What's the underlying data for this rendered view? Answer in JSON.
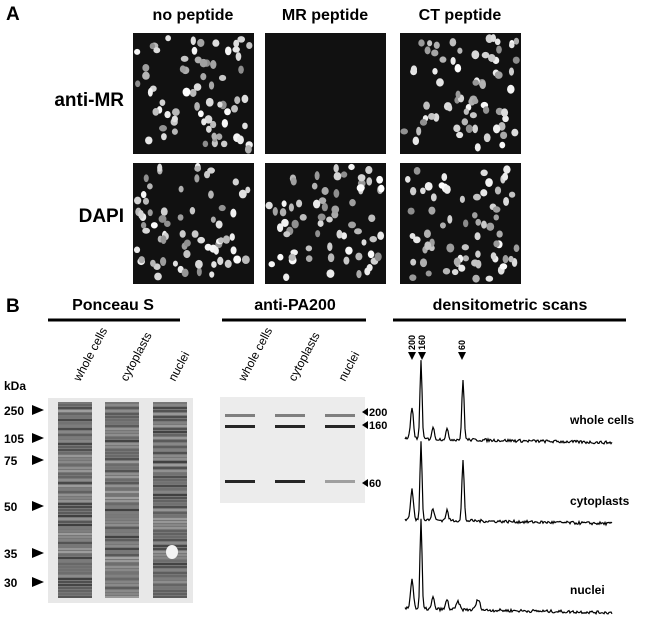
{
  "panel_a": {
    "label": "A",
    "columns": [
      "no peptide",
      "MR peptide",
      "CT peptide"
    ],
    "rows": [
      "anti-MR",
      "DAPI"
    ]
  },
  "panel_b": {
    "label": "B",
    "ponceau": {
      "title": "Ponceau S",
      "lanes": [
        "whole cells",
        "cytoplasts",
        "nuclei"
      ],
      "unit": "kDa",
      "markers": [
        250,
        105,
        75,
        50,
        35,
        30
      ]
    },
    "blot": {
      "title": "anti-PA200",
      "lanes": [
        "whole cells",
        "cytoplasts",
        "nuclei"
      ],
      "markers": [
        200,
        160,
        60
      ]
    },
    "scans": {
      "title": "densitometric scans",
      "peaks": [
        200,
        160,
        60
      ],
      "traces": [
        "whole cells",
        "cytoplasts",
        "nuclei"
      ]
    }
  }
}
